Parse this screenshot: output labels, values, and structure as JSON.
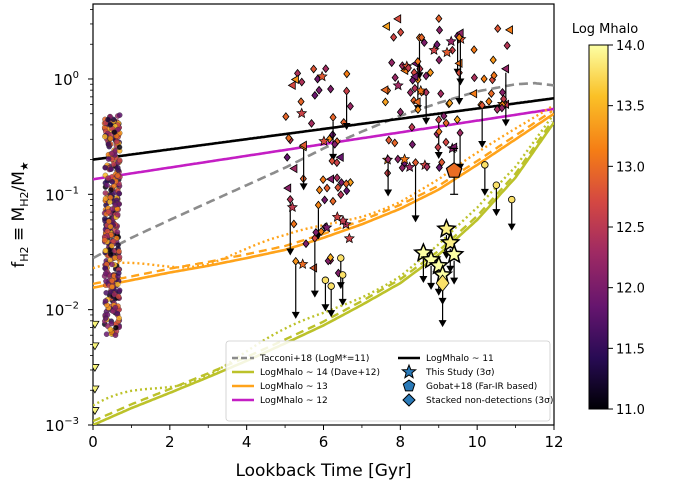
{
  "chart_data": {
    "type": "scatter",
    "xlabel": "Lookback Time [Gyr]",
    "ylabel_prefix": "f",
    "ylabel_sub": "H2",
    "ylabel_eq": " ≡ M",
    "ylabel_sub2": "H2",
    "ylabel_tail": "/M",
    "ylabel_star": "★",
    "xlim": [
      0,
      12
    ],
    "ylim_log10": [
      -3,
      0.65
    ],
    "x_ticks": [
      0,
      2,
      4,
      6,
      8,
      10,
      12
    ],
    "y_ticks": [
      {
        "exp": -3,
        "label": "10",
        "sup": "−3"
      },
      {
        "exp": -2,
        "label": "10",
        "sup": "−2"
      },
      {
        "exp": -1,
        "label": "10",
        "sup": "−1"
      },
      {
        "exp": 0,
        "label": "10",
        "sup": "0"
      }
    ],
    "colorbar": {
      "label": "Log Mhalo",
      "min": 11.0,
      "max": 14.0,
      "ticks": [
        "11.0",
        "11.5",
        "12.0",
        "12.5",
        "13.0",
        "13.5",
        "14.0"
      ]
    },
    "lines": [
      {
        "name": "Tacconi+18 (LogM*=11)",
        "color": "#8c8c8c",
        "dash": "dashed",
        "x": [
          0,
          1,
          2,
          3,
          4,
          5,
          6,
          7,
          8,
          9,
          10,
          11,
          11.5,
          12
        ],
        "y": [
          0.028,
          0.042,
          0.06,
          0.085,
          0.12,
          0.17,
          0.25,
          0.35,
          0.48,
          0.62,
          0.78,
          0.9,
          0.92,
          0.88
        ]
      },
      {
        "name": "LogMhalo ~ 11",
        "color": "#000000",
        "dash": "solid",
        "x": [
          0,
          12
        ],
        "y": [
          0.2,
          0.68
        ]
      },
      {
        "name": "LogMhalo ~ 12",
        "color": "#c41ec4",
        "dash": "solid",
        "x": [
          0,
          12
        ],
        "y": [
          0.135,
          0.55
        ]
      },
      {
        "name": "LogMhalo ~ 13",
        "color": "#ffa31a",
        "dash": "solid",
        "x": [
          0,
          1,
          2,
          3,
          4,
          5,
          6,
          7,
          8,
          9,
          10,
          11,
          12
        ],
        "y": [
          0.0155,
          0.018,
          0.021,
          0.024,
          0.028,
          0.033,
          0.042,
          0.055,
          0.075,
          0.11,
          0.18,
          0.3,
          0.5
        ]
      },
      {
        "name": "LogMhalo ~ 14 (Dave+12)",
        "color": "#bcc22a",
        "dash": "solid",
        "x": [
          0,
          1,
          2,
          3,
          4,
          5,
          6,
          7,
          8,
          9,
          10,
          11,
          12
        ],
        "y": [
          0.001,
          0.0014,
          0.0019,
          0.0026,
          0.0036,
          0.0051,
          0.0073,
          0.011,
          0.017,
          0.03,
          0.06,
          0.14,
          0.42
        ]
      }
    ],
    "legend": {
      "placement": "lower-right",
      "col1": [
        {
          "label": "Tacconi+18 (LogM*=11)",
          "kind": "dash",
          "color": "#8c8c8c"
        },
        {
          "label": "LogMhalo ~ 14 (Dave+12)",
          "kind": "line",
          "color": "#bcc22a"
        },
        {
          "label": "LogMhalo ~ 13",
          "kind": "line",
          "color": "#ffa31a"
        },
        {
          "label": "LogMhalo ~ 12",
          "kind": "line",
          "color": "#c41ec4"
        }
      ],
      "col2": [
        {
          "label": "LogMhalo ~ 11",
          "kind": "line",
          "color": "#000000"
        },
        {
          "label": "This Study (3σ)",
          "kind": "star",
          "color": "#2a7ab8"
        },
        {
          "label": "Gobat+18 (Far-IR based)",
          "kind": "pentagon",
          "color": "#2a7ab8"
        },
        {
          "label": "Stacked non-detections (3σ)",
          "kind": "diamond",
          "color": "#2a7ab8"
        }
      ]
    },
    "scatter_groups": [
      {
        "name": "local-sample",
        "x": 0.5,
        "y_range": [
          0.006,
          0.5
        ],
        "halo_range": [
          11.0,
          13.6
        ]
      },
      {
        "name": "t-5-7",
        "x_range": [
          5.0,
          6.7
        ],
        "y_range": [
          0.02,
          1.4
        ],
        "halo_range": [
          11.8,
          13.5
        ]
      },
      {
        "name": "t-7.5-9.5",
        "x_range": [
          7.6,
          9.6
        ],
        "y_range": [
          0.15,
          3.5
        ],
        "halo_range": [
          11.8,
          13.4
        ]
      },
      {
        "name": "t-10-11",
        "x_range": [
          9.9,
          11.0
        ],
        "y_range": [
          0.5,
          3.0
        ],
        "halo_range": [
          12.0,
          13.3
        ]
      }
    ],
    "this_study": [
      {
        "x": 8.6,
        "y": 0.031,
        "halo": 14.0
      },
      {
        "x": 8.8,
        "y": 0.027,
        "halo": 14.0
      },
      {
        "x": 9.0,
        "y": 0.024,
        "halo": 14.0
      },
      {
        "x": 9.2,
        "y": 0.05,
        "halo": 13.9
      },
      {
        "x": 9.3,
        "y": 0.038,
        "halo": 13.9
      },
      {
        "x": 9.4,
        "y": 0.03,
        "halo": 14.0
      },
      {
        "x": 9.1,
        "y": 0.02,
        "halo": 14.0
      }
    ],
    "gobat": {
      "x": 9.4,
      "y": 0.16,
      "halo": 13.0
    },
    "stacked": {
      "x": 9.1,
      "y": 0.017,
      "halo": 13.8
    }
  }
}
